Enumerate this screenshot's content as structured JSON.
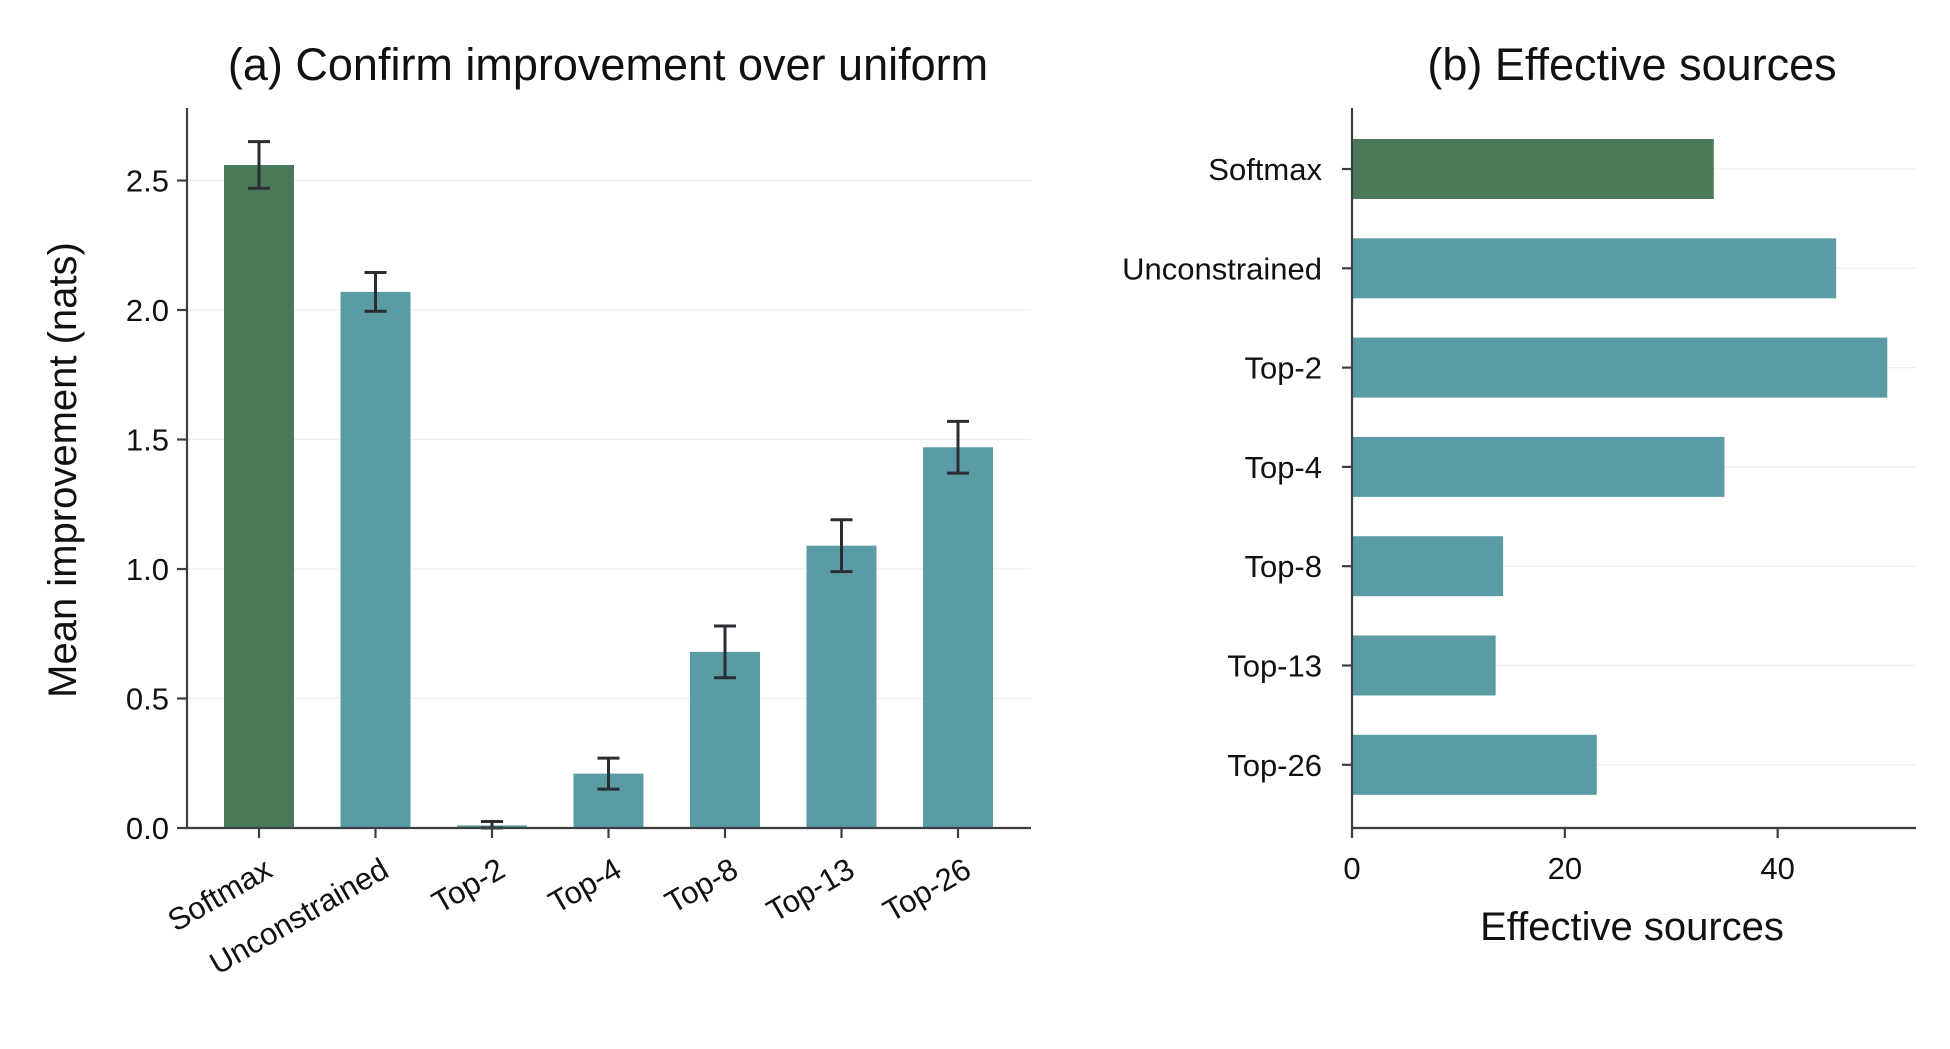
{
  "chart_data": [
    {
      "type": "bar",
      "title": "(a) Confirm improvement over uniform",
      "xlabel": "",
      "ylabel": "Mean improvement (nats)",
      "categories": [
        "Softmax",
        "Unconstrained",
        "Top-2",
        "Top-4",
        "Top-8",
        "Top-13",
        "Top-26"
      ],
      "values": [
        2.56,
        2.07,
        0.01,
        0.21,
        0.68,
        1.09,
        1.47
      ],
      "errors": [
        0.09,
        0.075,
        0.015,
        0.06,
        0.1,
        0.1,
        0.1
      ],
      "ylim": [
        0,
        2.78
      ],
      "yticks": [
        0.0,
        0.5,
        1.0,
        1.5,
        2.0,
        2.5
      ],
      "ytick_labels": [
        "0.0",
        "0.5",
        "1.0",
        "1.5",
        "2.0",
        "2.5"
      ],
      "grid": "horizontal, light",
      "colors": [
        "#4a7a5a",
        "#5b9ba3",
        "#5b9ba3",
        "#5b9ba3",
        "#5b9ba3",
        "#5b9ba3",
        "#5b9ba3"
      ]
    },
    {
      "type": "bar",
      "orientation": "horizontal",
      "title": "(b) Effective sources",
      "xlabel": "Effective sources",
      "ylabel": "",
      "categories": [
        "Softmax",
        "Unconstrained",
        "Top-2",
        "Top-4",
        "Top-8",
        "Top-13",
        "Top-26"
      ],
      "values": [
        34,
        45.5,
        50.3,
        35,
        14.2,
        13.5,
        23
      ],
      "xlim": [
        0,
        53
      ],
      "xticks": [
        0,
        20,
        40
      ],
      "xtick_labels": [
        "0",
        "20",
        "40"
      ],
      "grid": "horizontal, light",
      "colors": [
        "#4a7a5a",
        "#5b9ba3",
        "#5b9ba3",
        "#5b9ba3",
        "#5b9ba3",
        "#5b9ba3",
        "#5b9ba3"
      ]
    }
  ]
}
